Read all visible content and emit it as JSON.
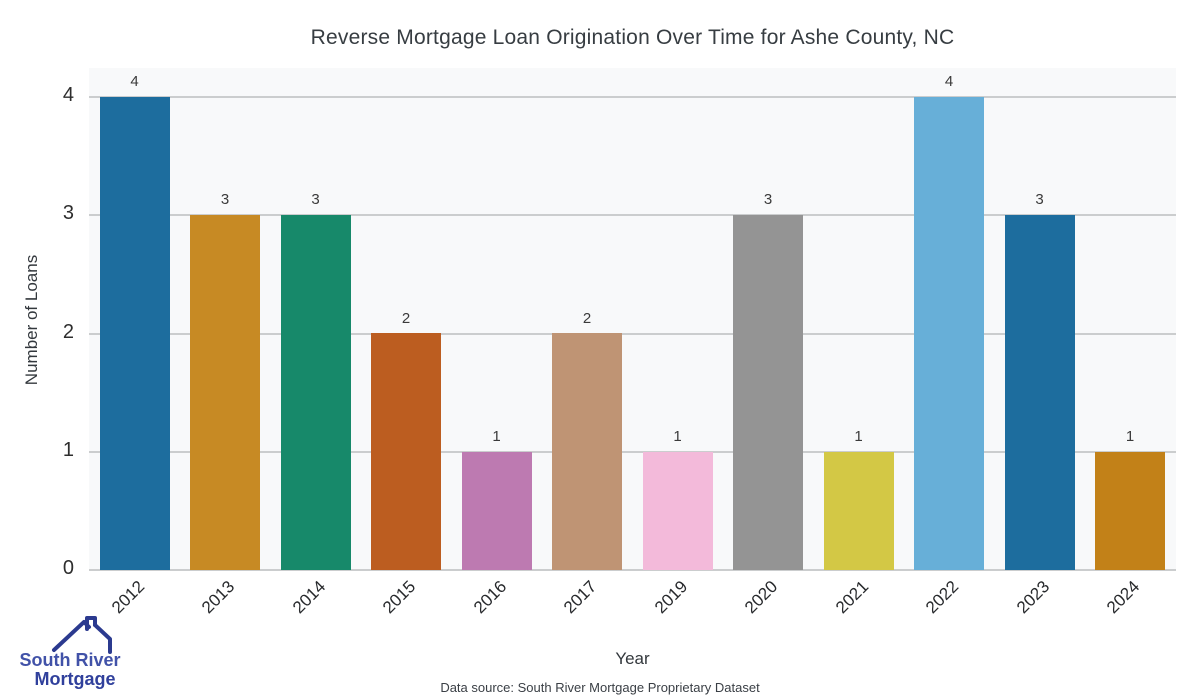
{
  "title": "Reverse Mortgage Loan Origination Over Time for Ashe County, NC",
  "x_axis_label": "Year",
  "y_axis_label": "Number of Loans",
  "footnote": "Data source: South River Mortgage Proprietary Dataset",
  "logo": {
    "line1": "South River",
    "line2": "Mortgage",
    "text_color_1": "#4152a8",
    "text_color_2": "#30409c",
    "roof_color": "#2b3a8f"
  },
  "chart_data": {
    "type": "bar",
    "title": "Reverse Mortgage Loan Origination Over Time for Ashe County, NC",
    "xlabel": "Year",
    "ylabel": "Number of Loans",
    "categories": [
      "2012",
      "2013",
      "2014",
      "2015",
      "2016",
      "2017",
      "2019",
      "2020",
      "2021",
      "2022",
      "2023",
      "2024"
    ],
    "values": [
      4,
      3,
      3,
      2,
      1,
      2,
      1,
      3,
      1,
      4,
      3,
      1
    ],
    "bar_colors": [
      "#1d6d9e",
      "#c78a24",
      "#17896a",
      "#bc5d20",
      "#bd7ab1",
      "#bf9474",
      "#f3bada",
      "#949494",
      "#d3c845",
      "#67afd8",
      "#1d6d9e",
      "#c28118"
    ],
    "bar_value_labels": [
      "4",
      "3",
      "3",
      "2",
      "1",
      "2",
      "1",
      "3",
      "1",
      "4",
      "3",
      "1"
    ],
    "ylim": [
      0,
      4
    ],
    "yticks": [
      "0",
      "1",
      "2",
      "3",
      "4"
    ],
    "grid": true,
    "legend": false,
    "plot_background": "#f8f9fa",
    "gridline_color": "#cbcdce"
  }
}
